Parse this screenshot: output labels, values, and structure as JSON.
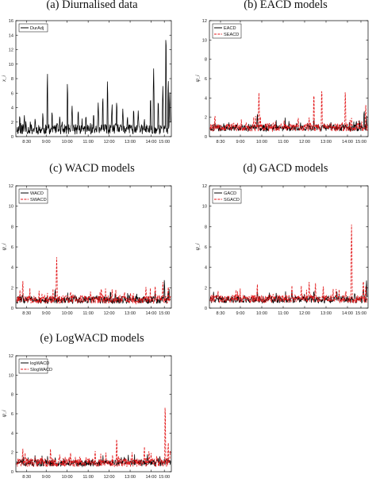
{
  "chart_data": [
    {
      "type": "line",
      "title": "(a) Diurnalised data",
      "ylabel": "x_i",
      "ylim": [
        0,
        16
      ],
      "yticks": [
        "0",
        "2",
        "4",
        "6",
        "8",
        "10",
        "12",
        "14",
        "16"
      ],
      "xticks": [
        "8:30",
        "9:00",
        "10:00",
        "11:00",
        "12:00",
        "13:00",
        "14:00",
        "15:00"
      ],
      "legend_position": "top-left",
      "series": [
        {
          "name": "DurAdj",
          "color": "#000000",
          "dash": "solid",
          "base": 1.0,
          "noise": 0.7,
          "seed": 11,
          "spikes": [
            [
              0.02,
              3.2
            ],
            [
              0.05,
              3.0
            ],
            [
              0.09,
              1.8
            ],
            [
              0.12,
              2.7
            ],
            [
              0.17,
              3.5
            ],
            [
              0.2,
              9.3
            ],
            [
              0.23,
              3.8
            ],
            [
              0.28,
              3.1
            ],
            [
              0.33,
              8.0
            ],
            [
              0.36,
              4.5
            ],
            [
              0.4,
              4.0
            ],
            [
              0.45,
              3.2
            ],
            [
              0.5,
              3.5
            ],
            [
              0.53,
              4.8
            ],
            [
              0.56,
              6.0
            ],
            [
              0.59,
              8.2
            ],
            [
              0.62,
              4.8
            ],
            [
              0.65,
              5.3
            ],
            [
              0.69,
              4.0
            ],
            [
              0.72,
              3.0
            ],
            [
              0.76,
              4.2
            ],
            [
              0.79,
              3.6
            ],
            [
              0.83,
              2.6
            ],
            [
              0.87,
              6.0
            ],
            [
              0.89,
              9.7
            ],
            [
              0.92,
              5.5
            ],
            [
              0.95,
              7.1
            ],
            [
              0.97,
              15.7
            ],
            [
              0.985,
              8.5
            ],
            [
              0.995,
              6.3
            ]
          ]
        }
      ]
    },
    {
      "type": "line",
      "title": "(b) EACD models",
      "ylabel": "ψ_i",
      "ylim": [
        0,
        12
      ],
      "yticks": [
        "0",
        "2",
        "4",
        "6",
        "8",
        "10",
        "12"
      ],
      "xticks": [
        "8:30",
        "9:00",
        "10:00",
        "11:00",
        "12:00",
        "13:00",
        "14:00",
        "15:00"
      ],
      "legend_position": "top-left",
      "series": [
        {
          "name": "EACD",
          "color": "#000000",
          "dash": "solid",
          "base": 0.9,
          "noise": 0.35,
          "seed": 21,
          "spikes": [
            [
              0.03,
              1.6
            ],
            [
              0.08,
              1.2
            ],
            [
              0.2,
              1.3
            ],
            [
              0.3,
              2.6
            ],
            [
              0.35,
              1.5
            ],
            [
              0.55,
              1.6
            ],
            [
              0.62,
              1.5
            ],
            [
              0.66,
              2.0
            ],
            [
              0.75,
              1.3
            ],
            [
              0.93,
              1.8
            ],
            [
              0.98,
              3.0
            ],
            [
              0.995,
              2.2
            ]
          ]
        },
        {
          "name": "SEACD",
          "color": "#e31a1c",
          "dash": "dashed",
          "base": 0.95,
          "noise": 0.4,
          "seed": 22,
          "spikes": [
            [
              0.03,
              2.5
            ],
            [
              0.15,
              1.5
            ],
            [
              0.31,
              4.7
            ],
            [
              0.4,
              1.6
            ],
            [
              0.56,
              2.2
            ],
            [
              0.63,
              2.0
            ],
            [
              0.66,
              5.0
            ],
            [
              0.71,
              5.6
            ],
            [
              0.86,
              5.2
            ],
            [
              0.9,
              2.0
            ],
            [
              0.965,
              1.8
            ],
            [
              0.99,
              3.5
            ]
          ]
        }
      ]
    },
    {
      "type": "line",
      "title": "(c) WACD models",
      "ylabel": "ψ_i",
      "ylim": [
        0,
        12
      ],
      "yticks": [
        "0",
        "2",
        "4",
        "6",
        "8",
        "10",
        "12"
      ],
      "xticks": [
        "8:30",
        "9:00",
        "10:00",
        "11:00",
        "12:00",
        "13:00",
        "14:00",
        "15:00"
      ],
      "legend_position": "top-left",
      "series": [
        {
          "name": "WACD",
          "color": "#000000",
          "dash": "solid",
          "base": 0.8,
          "noise": 0.35,
          "seed": 31,
          "spikes": [
            [
              0.04,
              1.5
            ],
            [
              0.25,
              2.0
            ],
            [
              0.38,
              1.4
            ],
            [
              0.52,
              1.3
            ],
            [
              0.61,
              1.8
            ],
            [
              0.78,
              1.5
            ],
            [
              0.9,
              1.6
            ],
            [
              0.96,
              3.0
            ],
            [
              0.99,
              2.0
            ]
          ]
        },
        {
          "name": "SWACD",
          "color": "#e31a1c",
          "dash": "dashed",
          "base": 0.85,
          "noise": 0.4,
          "seed": 32,
          "spikes": [
            [
              0.04,
              2.9
            ],
            [
              0.2,
              1.6
            ],
            [
              0.26,
              5.1
            ],
            [
              0.35,
              1.8
            ],
            [
              0.48,
              1.7
            ],
            [
              0.55,
              2.2
            ],
            [
              0.62,
              2.0
            ],
            [
              0.7,
              1.6
            ],
            [
              0.84,
              2.1
            ],
            [
              0.9,
              2.2
            ],
            [
              0.95,
              2.6
            ],
            [
              0.985,
              2.3
            ]
          ]
        }
      ]
    },
    {
      "type": "line",
      "title": "(d) GACD models",
      "ylabel": "ψ_i",
      "ylim": [
        0,
        12
      ],
      "yticks": [
        "0",
        "2",
        "4",
        "6",
        "8",
        "10",
        "12"
      ],
      "xticks": [
        "8:30",
        "9:00",
        "10:00",
        "11:00",
        "12:00",
        "13:00",
        "14:00",
        "15:00"
      ],
      "legend_position": "top-left",
      "series": [
        {
          "name": "GACD",
          "color": "#000000",
          "dash": "solid",
          "base": 0.85,
          "noise": 0.35,
          "seed": 41,
          "spikes": [
            [
              0.04,
              1.4
            ],
            [
              0.22,
              1.3
            ],
            [
              0.3,
              1.8
            ],
            [
              0.42,
              1.5
            ],
            [
              0.52,
              1.7
            ],
            [
              0.6,
              1.6
            ],
            [
              0.66,
              1.9
            ],
            [
              0.8,
              1.4
            ],
            [
              0.92,
              1.7
            ],
            [
              0.975,
              2.2
            ],
            [
              0.995,
              2.8
            ]
          ]
        },
        {
          "name": "SGACD",
          "color": "#e31a1c",
          "dash": "dashed",
          "base": 0.9,
          "noise": 0.4,
          "seed": 42,
          "spikes": [
            [
              0.05,
              1.7
            ],
            [
              0.18,
              1.5
            ],
            [
              0.3,
              2.6
            ],
            [
              0.4,
              1.6
            ],
            [
              0.52,
              2.3
            ],
            [
              0.58,
              2.2
            ],
            [
              0.63,
              2.6
            ],
            [
              0.67,
              2.7
            ],
            [
              0.72,
              2.4
            ],
            [
              0.86,
              1.6
            ],
            [
              0.9,
              8.5
            ],
            [
              0.975,
              3.1
            ],
            [
              0.99,
              2.3
            ]
          ]
        }
      ]
    },
    {
      "type": "line",
      "title": "(e) LogWACD models",
      "ylabel": "ψ_i",
      "ylim": [
        0,
        12
      ],
      "yticks": [
        "0",
        "2",
        "4",
        "6",
        "8",
        "10",
        "12"
      ],
      "xticks": [
        "8:30",
        "9:00",
        "10:00",
        "11:00",
        "12:00",
        "13:00",
        "14:00",
        "15:00"
      ],
      "legend_position": "top-left",
      "series": [
        {
          "name": "logWACD",
          "color": "#000000",
          "dash": "solid",
          "base": 0.9,
          "noise": 0.35,
          "seed": 51,
          "spikes": [
            [
              0.04,
              1.5
            ],
            [
              0.25,
              1.6
            ],
            [
              0.38,
              1.3
            ],
            [
              0.55,
              1.5
            ],
            [
              0.7,
              1.7
            ],
            [
              0.85,
              1.9
            ],
            [
              0.93,
              1.8
            ],
            [
              0.975,
              1.6
            ]
          ]
        },
        {
          "name": "SlogWACD",
          "color": "#e31a1c",
          "dash": "dashed",
          "base": 0.95,
          "noise": 0.45,
          "seed": 52,
          "spikes": [
            [
              0.04,
              2.6
            ],
            [
              0.12,
              1.7
            ],
            [
              0.22,
              2.5
            ],
            [
              0.28,
              2.0
            ],
            [
              0.35,
              2.2
            ],
            [
              0.45,
              1.7
            ],
            [
              0.51,
              2.4
            ],
            [
              0.58,
              2.0
            ],
            [
              0.65,
              3.8
            ],
            [
              0.75,
              2.2
            ],
            [
              0.83,
              2.8
            ],
            [
              0.86,
              2.4
            ],
            [
              0.91,
              1.8
            ],
            [
              0.965,
              7.5
            ],
            [
              0.985,
              3.3
            ]
          ]
        }
      ]
    }
  ]
}
